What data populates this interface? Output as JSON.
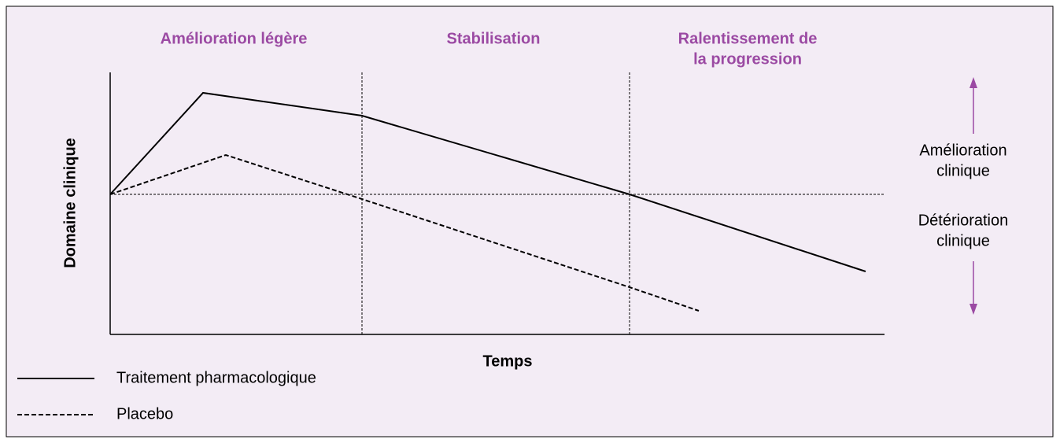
{
  "phases": [
    [
      "Amélioration légère"
    ],
    [
      "Stabilisation"
    ],
    [
      "Ralentissement de",
      "la progression"
    ]
  ],
  "y_axis_label": "Domaine clinique",
  "x_axis_label": "Temps",
  "side_labels": {
    "up": [
      "Amélioration",
      "clinique"
    ],
    "down": [
      "Détérioration",
      "clinique"
    ]
  },
  "legend": [
    "Traitement pharmacologique",
    "Placebo"
  ]
}
